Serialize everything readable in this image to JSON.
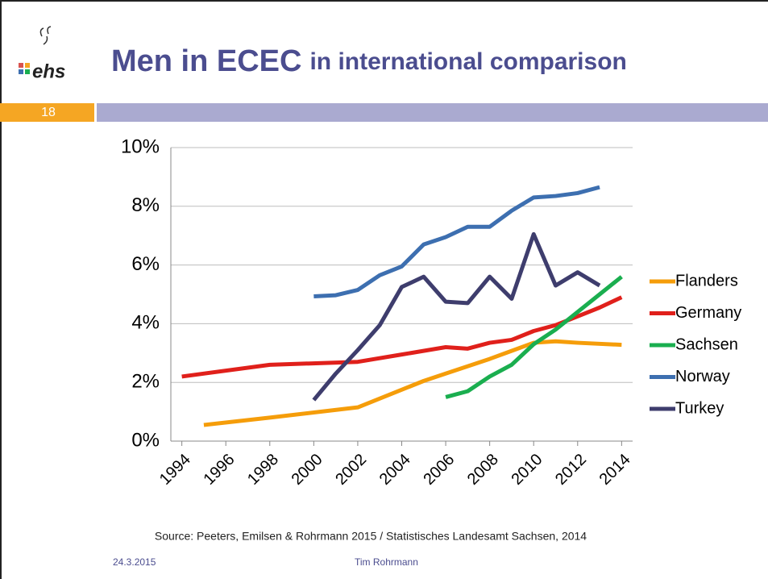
{
  "slide": {
    "logo": "ehs",
    "title_main": "Men in ECEC",
    "title_rest": "in international comparison",
    "number": "18",
    "source": "Source: Peeters, Emilsen & Rohrmann 2015 / Statistisches Landesamt Sachsen, 2014",
    "date": "24.3.2015",
    "author": "Tim Rohrmann"
  },
  "chart_data": {
    "type": "line",
    "xlim": [
      1993.5,
      2014.5
    ],
    "xticks": [
      1994,
      1996,
      1998,
      2000,
      2002,
      2004,
      2006,
      2008,
      2010,
      2012,
      2014
    ],
    "ylim": [
      0,
      10
    ],
    "yticks": [
      {
        "value": 0,
        "label": "0%"
      },
      {
        "value": 2,
        "label": "2%"
      },
      {
        "value": 4,
        "label": "4%"
      },
      {
        "value": 6,
        "label": "6%"
      },
      {
        "value": 8,
        "label": "8%"
      },
      {
        "value": 10,
        "label": "10%"
      }
    ],
    "grid": true,
    "legend": "right",
    "series": [
      {
        "name": "Flanders",
        "color": "#f59d0a",
        "x": [
          1995,
          1998,
          2002,
          2005,
          2006,
          2008,
          2010,
          2011,
          2012,
          2014
        ],
        "values": [
          0.55,
          0.8,
          1.15,
          2.05,
          2.3,
          2.8,
          3.35,
          3.4,
          3.35,
          3.28
        ]
      },
      {
        "name": "Germany",
        "color": "#e0201b",
        "x": [
          1994,
          1998,
          2002,
          2004,
          2006,
          2007,
          2008,
          2009,
          2010,
          2011,
          2012,
          2013,
          2014
        ],
        "values": [
          2.2,
          2.6,
          2.7,
          2.95,
          3.2,
          3.15,
          3.35,
          3.45,
          3.75,
          3.95,
          4.25,
          4.55,
          4.9
        ]
      },
      {
        "name": "Sachsen",
        "color": "#1aae4f",
        "x": [
          2006,
          2007,
          2008,
          2009,
          2010,
          2011,
          2012,
          2013,
          2014
        ],
        "values": [
          1.5,
          1.7,
          2.2,
          2.6,
          3.3,
          3.8,
          4.4,
          5.0,
          5.6
        ]
      },
      {
        "name": "Norway",
        "color": "#3d6fb0",
        "x": [
          2000,
          2001,
          2002,
          2003,
          2004,
          2005,
          2006,
          2007,
          2008,
          2009,
          2010,
          2011,
          2012,
          2013
        ],
        "values": [
          4.93,
          4.97,
          5.15,
          5.65,
          5.95,
          6.7,
          6.95,
          7.3,
          7.3,
          7.85,
          8.3,
          8.35,
          8.45,
          8.65
        ]
      },
      {
        "name": "Turkey",
        "color": "#3e3d6d",
        "x": [
          2000,
          2001,
          2002,
          2003,
          2004,
          2005,
          2006,
          2007,
          2008,
          2009,
          2010,
          2011,
          2012,
          2013
        ],
        "values": [
          1.4,
          2.3,
          3.1,
          3.95,
          5.25,
          5.6,
          4.75,
          4.7,
          5.6,
          4.85,
          7.05,
          5.3,
          5.75,
          5.3
        ]
      }
    ]
  }
}
